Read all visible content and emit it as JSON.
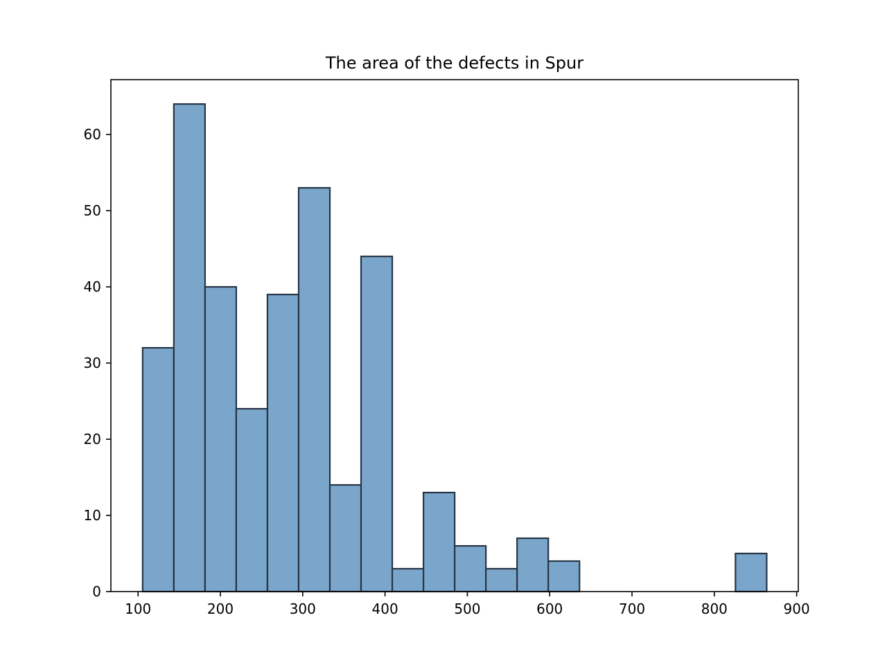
{
  "chart_data": {
    "type": "bar",
    "title": "The area of the defects in Spur",
    "xlabel": "",
    "ylabel": "",
    "grid": false,
    "xlim": [
      67,
      902
    ],
    "ylim": [
      0,
      67.2
    ],
    "x_ticks": [
      100,
      200,
      300,
      400,
      500,
      600,
      700,
      800,
      900
    ],
    "y_ticks": [
      0,
      10,
      20,
      30,
      40,
      50,
      60
    ],
    "bins": [
      {
        "x0": 105.6,
        "x1": 143.5,
        "count": 32
      },
      {
        "x0": 143.5,
        "x1": 181.4,
        "count": 64
      },
      {
        "x0": 181.4,
        "x1": 219.3,
        "count": 40
      },
      {
        "x0": 219.3,
        "x1": 257.2,
        "count": 24
      },
      {
        "x0": 257.2,
        "x1": 295.1,
        "count": 39
      },
      {
        "x0": 295.1,
        "x1": 333.0,
        "count": 53
      },
      {
        "x0": 333.0,
        "x1": 370.9,
        "count": 14
      },
      {
        "x0": 370.9,
        "x1": 408.8,
        "count": 44
      },
      {
        "x0": 408.8,
        "x1": 446.7,
        "count": 3
      },
      {
        "x0": 446.7,
        "x1": 484.6,
        "count": 13
      },
      {
        "x0": 484.6,
        "x1": 522.5,
        "count": 6
      },
      {
        "x0": 522.5,
        "x1": 560.4,
        "count": 3
      },
      {
        "x0": 560.4,
        "x1": 598.3,
        "count": 7
      },
      {
        "x0": 598.3,
        "x1": 636.2,
        "count": 4
      },
      {
        "x0": 636.2,
        "x1": 674.1,
        "count": 0
      },
      {
        "x0": 674.1,
        "x1": 712.0,
        "count": 0
      },
      {
        "x0": 712.0,
        "x1": 749.9,
        "count": 0
      },
      {
        "x0": 749.9,
        "x1": 787.8,
        "count": 0
      },
      {
        "x0": 787.8,
        "x1": 825.7,
        "count": 0
      },
      {
        "x0": 825.7,
        "x1": 863.6,
        "count": 5
      }
    ],
    "colors": {
      "bar_fill": "#7ba6cb",
      "bar_edge": "#263445"
    }
  }
}
